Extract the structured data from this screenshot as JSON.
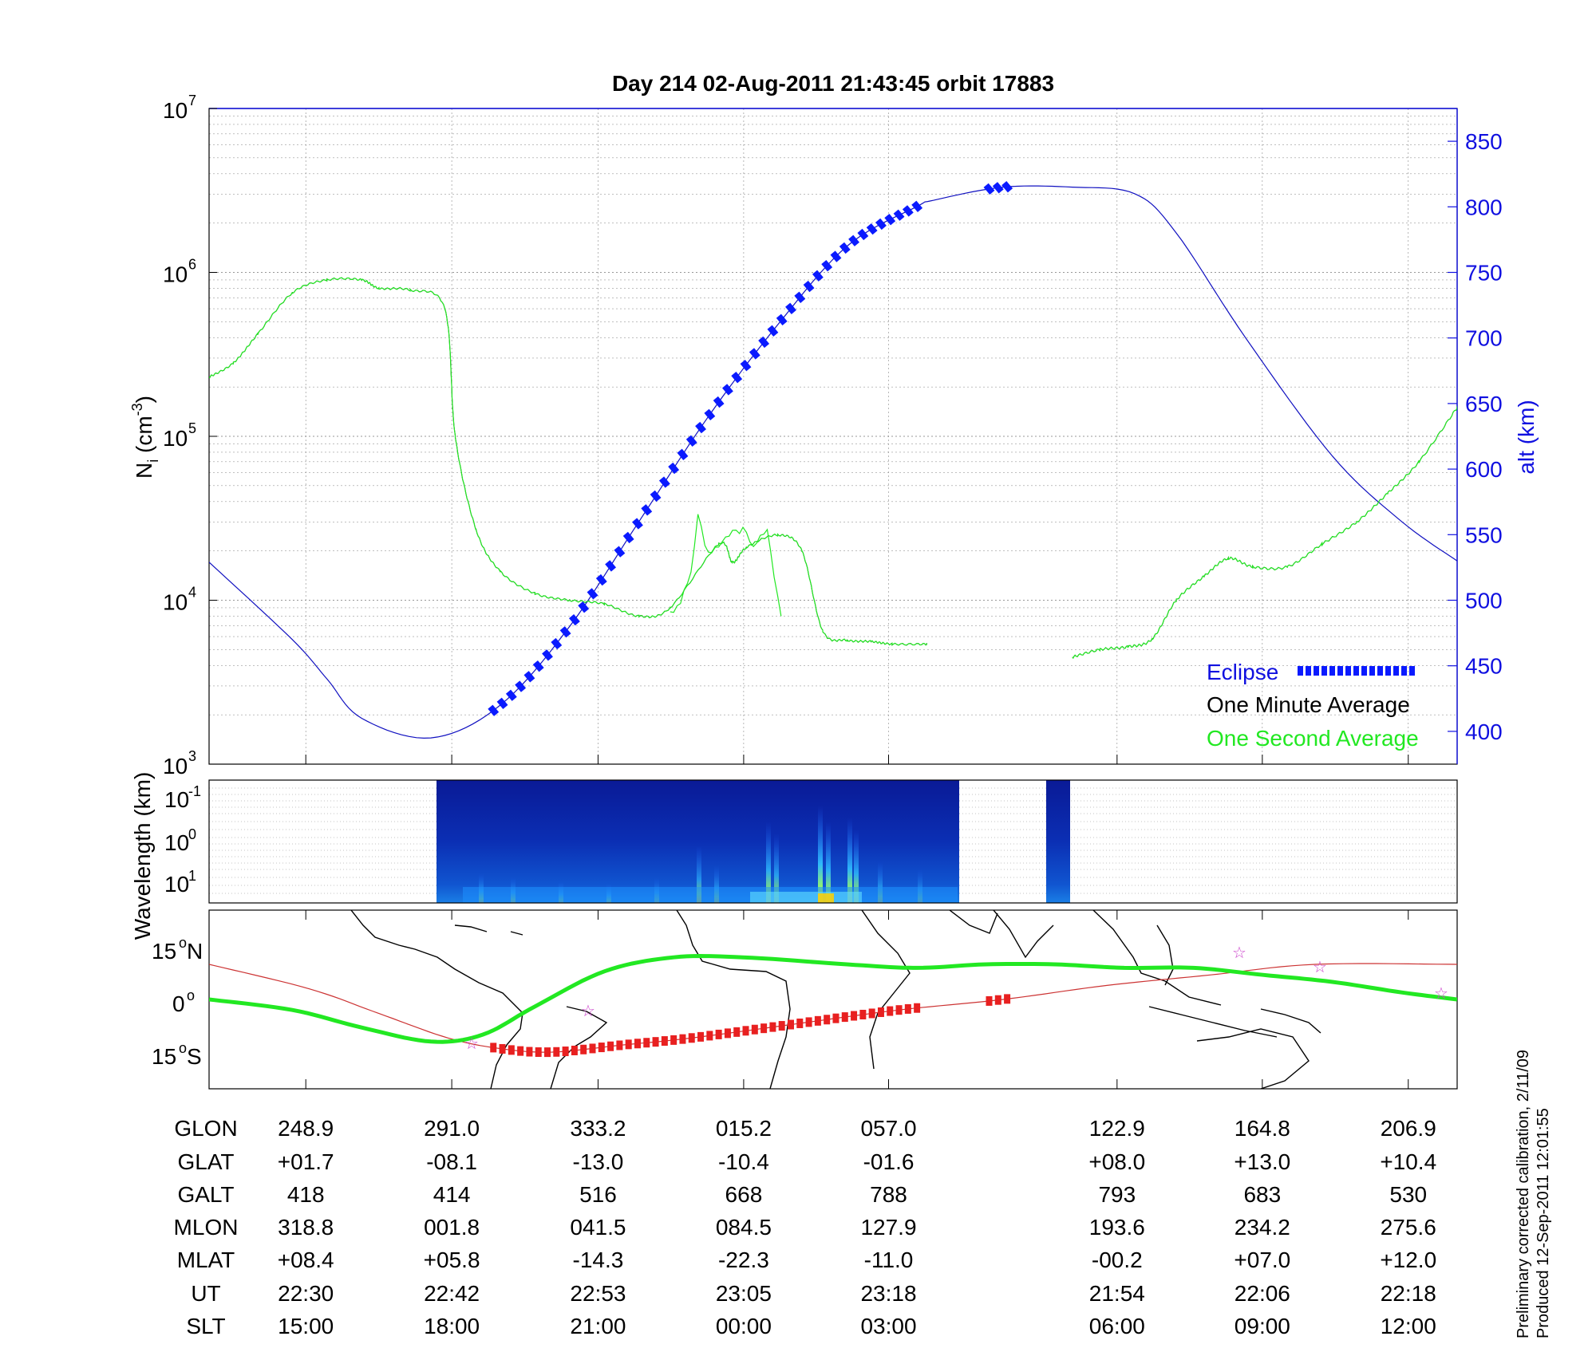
{
  "title": "Day 214  02-Aug-2011 21:43:45   orbit 17883",
  "panel_density": {
    "ylabel_main": "N",
    "ylabel_sub": "i",
    "ylabel_unit": " (cm",
    "ylabel_exp": "-3",
    "ylabel_close": ")",
    "y2label": "alt (km)",
    "y_ticks": [
      {
        "value": 3,
        "base": "10",
        "exp": "3"
      },
      {
        "value": 4,
        "base": "10",
        "exp": "4"
      },
      {
        "value": 5,
        "base": "10",
        "exp": "5"
      },
      {
        "value": 6,
        "base": "10",
        "exp": "6"
      },
      {
        "value": 7,
        "base": "10",
        "exp": "7"
      }
    ],
    "y2_ticks": [
      "400",
      "450",
      "500",
      "550",
      "600",
      "650",
      "700",
      "750",
      "800",
      "850"
    ],
    "legend": {
      "eclipse": "Eclipse",
      "minute": "One Minute Average",
      "second": "One Second Average"
    }
  },
  "panel_spectrum": {
    "ylabel": "Wavelength (km)",
    "y_ticks": [
      {
        "base": "10",
        "exp": "-1"
      },
      {
        "base": "10",
        "exp": "0"
      },
      {
        "base": "10",
        "exp": "1"
      }
    ]
  },
  "panel_map": {
    "y_ticks": [
      {
        "num": "15",
        "deg": "o",
        "hem": "N"
      },
      {
        "num": "0",
        "deg": "o",
        "hem": ""
      },
      {
        "num": "15",
        "deg": "o",
        "hem": "S"
      }
    ]
  },
  "table": {
    "row_labels": [
      "GLON",
      "GLAT",
      "GALT",
      "MLON",
      "MLAT",
      "UT",
      "SLT"
    ],
    "columns": [
      [
        "248.9",
        "+01.7",
        "418",
        "318.8",
        "+08.4",
        "22:30",
        "15:00"
      ],
      [
        "291.0",
        "-08.1",
        "414",
        "001.8",
        "+05.8",
        "22:42",
        "18:00"
      ],
      [
        "333.2",
        "-13.0",
        "516",
        "041.5",
        "-14.3",
        "22:53",
        "21:00"
      ],
      [
        "015.2",
        "-10.4",
        "668",
        "084.5",
        "-22.3",
        "23:05",
        "00:00"
      ],
      [
        "057.0",
        "-01.6",
        "788",
        "127.9",
        "-11.0",
        "23:18",
        "03:00"
      ],
      [
        "122.9",
        "+08.0",
        "793",
        "193.6",
        "-00.2",
        "21:54",
        "06:00"
      ],
      [
        "164.8",
        "+13.0",
        "683",
        "234.2",
        "+07.0",
        "22:06",
        "09:00"
      ],
      [
        "206.9",
        "+10.4",
        "530",
        "275.6",
        "+12.0",
        "22:18",
        "12:00"
      ]
    ]
  },
  "footnote": {
    "line1": "Preliminary corrected calibration, 2/11/09",
    "line2": "Produced 12-Sep-2011 12:01:55"
  },
  "colors": {
    "eclipse": "#0a1aff",
    "minute": "#000000",
    "second": "#22e822",
    "altitude": "#1010c0",
    "track_green": "#22e822",
    "track_red": "#e82020",
    "mag_equator": "#cc3333"
  },
  "chart_data": {
    "type": "line",
    "x_axis": "GLON (deg)",
    "y_scale": "log",
    "ylim": [
      1000,
      10000000
    ],
    "y2lim": [
      375,
      875
    ],
    "series": [
      {
        "name": "One Minute Average",
        "x": [
          221,
          228,
          235,
          245,
          255,
          265,
          270,
          279,
          289,
          292,
          298,
          305,
          315,
          325,
          335,
          345,
          354,
          8,
          12,
          16,
          25,
          32,
          38,
          45,
          52,
          58,
          68
        ],
        "y": [
          230000,
          280000,
          420000,
          750000,
          900000,
          900000,
          800000,
          780000,
          600000,
          100000,
          27000,
          15000,
          11000,
          10000,
          9500,
          8000,
          9000,
          22000,
          17000,
          21000,
          25000,
          20000,
          6500,
          5700,
          5600,
          5400,
          5400
        ]
      },
      {
        "name": "One Second Average",
        "x": [
          354,
          357,
          360,
          362,
          364,
          366,
          370,
          375,
          378,
          382,
          386
        ],
        "y": [
          8500,
          9500,
          15000,
          33000,
          22000,
          19000,
          25000,
          27000,
          22000,
          26000,
          8000
        ]
      },
      {
        "name": "One Minute Average (second segment)",
        "x": [
          110,
          118,
          126,
          133,
          140,
          148,
          155,
          162,
          172,
          182,
          192,
          201,
          210,
          215
        ],
        "y": [
          4500,
          5000,
          5200,
          5800,
          10000,
          14000,
          18000,
          16000,
          16000,
          22000,
          30000,
          45000,
          70000,
          150000
        ]
      },
      {
        "name": "alt (km)",
        "x": [
          221,
          245,
          255,
          265,
          285,
          305,
          325,
          345,
          5,
          25,
          45,
          65,
          70,
          90,
          110,
          128,
          140,
          160,
          185,
          205,
          221
        ],
        "y": [
          529,
          470,
          440,
          410,
          395,
          420,
          480,
          560,
          640,
          710,
          770,
          800,
          805,
          815,
          815,
          810,
          780,
          700,
          610,
          560,
          530
        ]
      }
    ],
    "eclipse_x": [
      [
        303,
        66
      ],
      [
        86,
        92
      ]
    ],
    "ground_track": {
      "lon": [
        221,
        245,
        265,
        285,
        300,
        315,
        335,
        355,
        15,
        45,
        65,
        85,
        105,
        125,
        145,
        165,
        185,
        205,
        221
      ],
      "lat": [
        0,
        -3,
        -8,
        -12,
        -10,
        -2,
        8,
        12,
        12,
        10,
        9,
        10,
        10,
        9,
        9,
        7,
        5,
        2,
        0
      ]
    },
    "magnetic_equator": {
      "lon": [
        221,
        250,
        270,
        290,
        305,
        320,
        340,
        0,
        30,
        60,
        90,
        120,
        150,
        180,
        221
      ],
      "lat": [
        10,
        3,
        -4,
        -11,
        -14,
        -15,
        -13,
        -11,
        -7,
        -3,
        0,
        4,
        7,
        10,
        10
      ]
    }
  }
}
